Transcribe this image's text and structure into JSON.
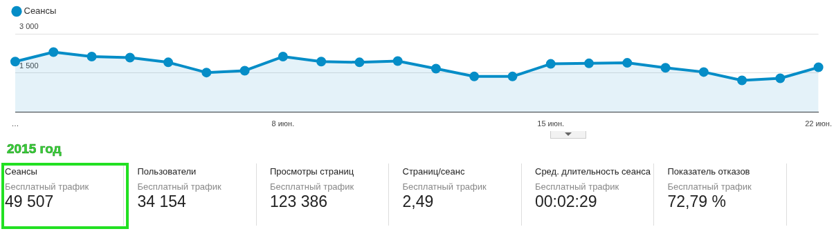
{
  "chart_data": [
    {
      "type": "area",
      "categories": [
        "…",
        null,
        null,
        null,
        null,
        null,
        null,
        "8 июн.",
        null,
        null,
        null,
        null,
        null,
        null,
        "15 июн.",
        null,
        null,
        null,
        null,
        null,
        null,
        "22 июн."
      ],
      "series": [
        {
          "name": "Сеансы",
          "color": "#058dc7",
          "values": [
            1940,
            2300,
            2130,
            2090,
            1910,
            1520,
            1590,
            2130,
            1940,
            1910,
            1960,
            1670,
            1370,
            1370,
            1850,
            1870,
            1890,
            1700,
            1540,
            1220,
            1300,
            1720
          ]
        }
      ],
      "ylim": [
        0,
        3000
      ],
      "yticks": [
        {
          "value": 1500,
          "label": "1 500"
        },
        {
          "value": 3000,
          "label": "3 000"
        }
      ],
      "grid": "y",
      "legend": "top left",
      "marker": "circle"
    },
    {
      "type": "other",
      "title": "2015 год",
      "annotations": [
        "Сеансы",
        "Бесплатный трафик",
        "49 507",
        "Пользователи",
        "Бесплатный трафик",
        "34 154",
        "Просмотры страниц",
        "Бесплатный трафик",
        "123 386",
        "Страниц/сеанс",
        "Бесплатный трафик",
        "2,49",
        "Сред. длительность сеанса",
        "Бесплатный трафик",
        "00:02:29",
        "Показатель отказов",
        "Бесплатный трафик",
        "72,79 %"
      ]
    }
  ]
}
